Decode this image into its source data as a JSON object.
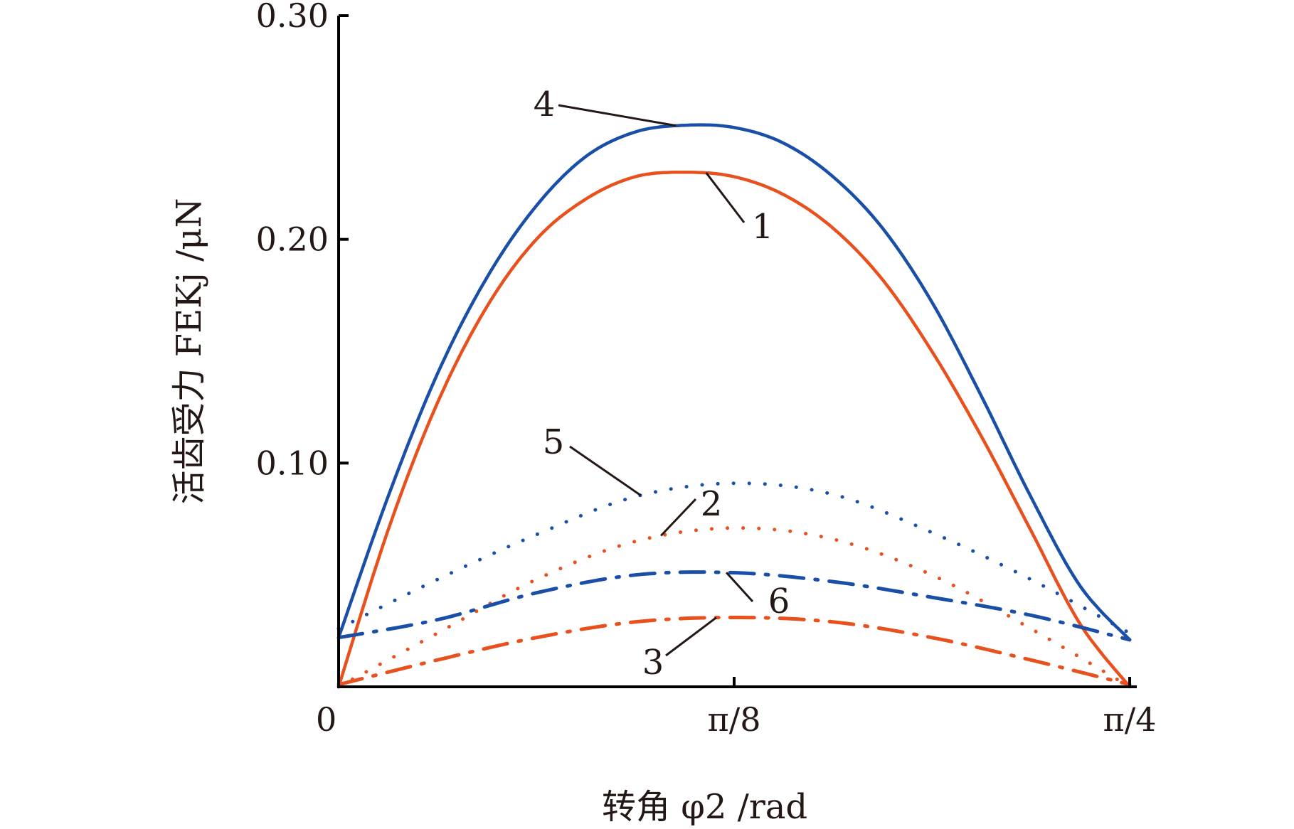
{
  "chart_data": {
    "type": "line",
    "xlabel": "转角 φ2 /rad",
    "ylabel": "活齿受力 FEKj /μN",
    "x_ticks": [
      "0",
      "π/8",
      "π/4"
    ],
    "y_ticks": [
      "0.10",
      "0.20",
      "0.30"
    ],
    "xlim": [
      0,
      0.7854
    ],
    "ylim": [
      0,
      0.3
    ],
    "grid": false,
    "series": [
      {
        "name": "1",
        "color": "#e8501e",
        "style": "solid",
        "x": [
          0,
          0.0491,
          0.0982,
          0.1473,
          0.1963,
          0.2454,
          0.2945,
          0.3436,
          0.3927,
          0.4418,
          0.4909,
          0.54,
          0.589,
          0.6381,
          0.6872,
          0.7363,
          0.7854
        ],
        "y": [
          0.0,
          0.07,
          0.127,
          0.17,
          0.2,
          0.218,
          0.228,
          0.23,
          0.228,
          0.22,
          0.205,
          0.182,
          0.15,
          0.112,
          0.07,
          0.028,
          0.0
        ]
      },
      {
        "name": "2",
        "color": "#e8501e",
        "style": "dotted",
        "x": [
          0,
          0.0982,
          0.1963,
          0.2945,
          0.3927,
          0.4909,
          0.589,
          0.6872,
          0.7854
        ],
        "y": [
          0.0,
          0.024,
          0.048,
          0.065,
          0.071,
          0.066,
          0.05,
          0.026,
          0.0
        ]
      },
      {
        "name": "3",
        "color": "#e8501e",
        "style": "dashdot",
        "x": [
          0,
          0.0982,
          0.1963,
          0.2945,
          0.3927,
          0.4909,
          0.589,
          0.6872,
          0.7854
        ],
        "y": [
          0.001,
          0.012,
          0.022,
          0.029,
          0.031,
          0.029,
          0.022,
          0.012,
          0.001
        ]
      },
      {
        "name": "4",
        "color": "#1a4fa8",
        "style": "solid",
        "x": [
          0,
          0.0491,
          0.0982,
          0.1473,
          0.1963,
          0.2454,
          0.2945,
          0.3436,
          0.3927,
          0.4418,
          0.4909,
          0.54,
          0.589,
          0.6381,
          0.6872,
          0.7363,
          0.7854
        ],
        "y": [
          0.022,
          0.085,
          0.14,
          0.183,
          0.215,
          0.237,
          0.248,
          0.251,
          0.25,
          0.243,
          0.228,
          0.205,
          0.172,
          0.13,
          0.085,
          0.045,
          0.021
        ]
      },
      {
        "name": "5",
        "color": "#1a4fa8",
        "style": "dotted",
        "x": [
          0,
          0.0982,
          0.1963,
          0.2945,
          0.3927,
          0.4909,
          0.589,
          0.6872,
          0.7854
        ],
        "y": [
          0.026,
          0.048,
          0.068,
          0.085,
          0.091,
          0.086,
          0.069,
          0.048,
          0.024
        ]
      },
      {
        "name": "6",
        "color": "#1a4fa8",
        "style": "dashdot",
        "x": [
          0,
          0.0982,
          0.1963,
          0.2945,
          0.3927,
          0.4909,
          0.589,
          0.6872,
          0.7854
        ],
        "y": [
          0.022,
          0.03,
          0.042,
          0.05,
          0.051,
          0.047,
          0.04,
          0.032,
          0.021
        ]
      }
    ],
    "callouts": [
      {
        "label": "4",
        "series": "4"
      },
      {
        "label": "1",
        "series": "1"
      },
      {
        "label": "5",
        "series": "5"
      },
      {
        "label": "2",
        "series": "2"
      },
      {
        "label": "6",
        "series": "6"
      },
      {
        "label": "3",
        "series": "3"
      }
    ]
  }
}
